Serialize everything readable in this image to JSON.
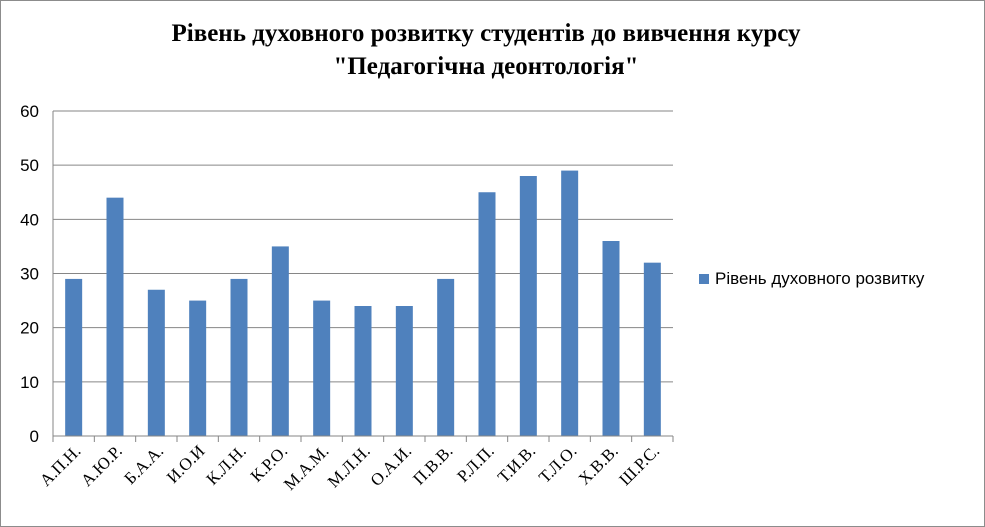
{
  "chart_data": {
    "type": "bar",
    "title": [
      "Рівень духовного  розвитку студентів до вивчення курсу",
      "\"Педагогічна деонтологія\""
    ],
    "categories": [
      "А.П.Н.",
      "А.Ю.Р.",
      "Б.А.А.",
      "И.О.И",
      "К.Л.Н.",
      "К.Р.О.",
      "М.А.М.",
      "М.Л.Н.",
      "О.А.И.",
      "П.В.В.",
      "Р.Л.П.",
      "Т.И.В.",
      "Т.Л.О.",
      "Х.В.В.",
      "Ш.Р.С."
    ],
    "series": [
      {
        "name": "Рівень духовного розвитку",
        "color": "#4f81bd",
        "values": [
          29,
          44,
          27,
          25,
          29,
          35,
          25,
          24,
          24,
          29,
          45,
          48,
          49,
          36,
          32
        ]
      }
    ],
    "ylim": [
      0,
      60
    ],
    "yticks": [
      "0",
      "10",
      "20",
      "30",
      "40",
      "50",
      "60"
    ],
    "grid": true,
    "legend_position": "right"
  }
}
